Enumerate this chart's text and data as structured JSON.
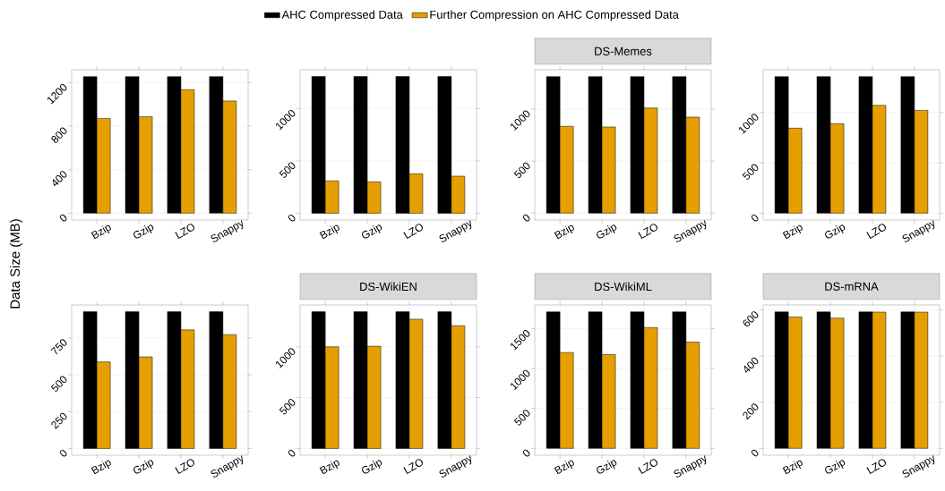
{
  "chart_data": [
    {
      "type": "bar",
      "categories": [
        "Bzip",
        "Gzip",
        "LZO",
        "Snappy"
      ],
      "ylabel": "Data Size (MB)",
      "legend": "top",
      "grid": true,
      "ylim": [
        -63,
        1318
      ],
      "yticks": [
        0,
        400,
        800,
        1200
      ],
      "series": [
        {
          "name": "AHC Compressed Data",
          "color": "#000000",
          "values": [
            1255,
            1255,
            1255,
            1255
          ]
        },
        {
          "name": "Further Compression on AHC Compressed Data",
          "color": "#e69f00",
          "values": [
            871,
            887,
            1135,
            1031
          ]
        }
      ]
    },
    {
      "type": "bar",
      "categories": [
        "Bzip",
        "Gzip",
        "LZO",
        "Snappy"
      ],
      "grid": true,
      "ylim": [
        -65,
        1371
      ],
      "yticks": [
        0,
        500,
        1000
      ],
      "series": [
        {
          "color": "#000000",
          "values": [
            1306,
            1306,
            1306,
            1306
          ]
        },
        {
          "color": "#e69f00",
          "values": [
            309,
            300,
            377,
            354
          ]
        }
      ]
    },
    {
      "type": "bar",
      "title": "DS-Memes",
      "categories": [
        "Bzip",
        "Gzip",
        "LZO",
        "Snappy"
      ],
      "grid": true,
      "ylim": [
        -66,
        1379
      ],
      "yticks": [
        0,
        500,
        1000
      ],
      "series": [
        {
          "color": "#000000",
          "values": [
            1313,
            1313,
            1313,
            1313
          ]
        },
        {
          "color": "#e69f00",
          "values": [
            835,
            829,
            1011,
            923
          ]
        }
      ]
    },
    {
      "type": "bar",
      "categories": [
        "Bzip",
        "Gzip",
        "LZO",
        "Snappy"
      ],
      "grid": true,
      "ylim": [
        -68,
        1424
      ],
      "yticks": [
        0,
        500,
        1000
      ],
      "series": [
        {
          "color": "#000000",
          "values": [
            1356,
            1356,
            1356,
            1356
          ]
        },
        {
          "color": "#e69f00",
          "values": [
            844,
            888,
            1071,
            1021
          ]
        }
      ]
    },
    {
      "type": "bar",
      "categories": [
        "Bzip",
        "Gzip",
        "LZO",
        "Snappy"
      ],
      "grid": true,
      "ylim": [
        -46,
        973
      ],
      "yticks": [
        0,
        250,
        500,
        750
      ],
      "series": [
        {
          "color": "#000000",
          "values": [
            927,
            927,
            927,
            927
          ]
        },
        {
          "color": "#e69f00",
          "values": [
            587,
            621,
            804,
            772
          ]
        }
      ]
    },
    {
      "type": "bar",
      "title": "DS-WikiEN",
      "categories": [
        "Bzip",
        "Gzip",
        "LZO",
        "Snappy"
      ],
      "grid": true,
      "ylim": [
        -67,
        1412
      ],
      "yticks": [
        0,
        500,
        1000
      ],
      "series": [
        {
          "color": "#000000",
          "values": [
            1345,
            1345,
            1345,
            1345
          ]
        },
        {
          "color": "#e69f00",
          "values": [
            1000,
            1006,
            1272,
            1208
          ]
        }
      ]
    },
    {
      "type": "bar",
      "title": "DS-WikiML",
      "categories": [
        "Bzip",
        "Gzip",
        "LZO",
        "Snappy"
      ],
      "grid": true,
      "ylim": [
        -86,
        1798
      ],
      "yticks": [
        0,
        500,
        1000,
        1500
      ],
      "series": [
        {
          "color": "#000000",
          "values": [
            1712,
            1712,
            1712,
            1712
          ]
        },
        {
          "color": "#e69f00",
          "values": [
            1202,
            1176,
            1515,
            1332
          ]
        }
      ]
    },
    {
      "type": "bar",
      "title": "DS-mRNA",
      "categories": [
        "Bzip",
        "Gzip",
        "LZO",
        "Snappy"
      ],
      "grid": true,
      "ylim": [
        -30,
        622
      ],
      "yticks": [
        0,
        200,
        400,
        600
      ],
      "series": [
        {
          "color": "#000000",
          "values": [
            592,
            592,
            592,
            592
          ]
        },
        {
          "color": "#e69f00",
          "values": [
            570,
            565,
            591,
            591
          ]
        }
      ]
    }
  ]
}
